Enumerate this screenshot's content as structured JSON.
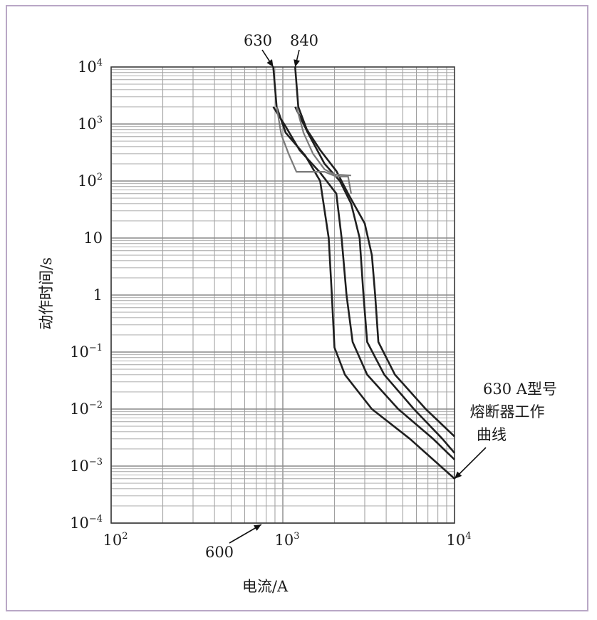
{
  "chart_data": {
    "type": "line",
    "xlabel": "电流/A",
    "ylabel": "动作时间/s",
    "x_scale": "log",
    "y_scale": "log",
    "xlim": [
      100,
      10000
    ],
    "ylim": [
      0.0001,
      10000
    ],
    "grid": true,
    "x_ticks": [
      {
        "value": 100,
        "base": "10",
        "exp": "2"
      },
      {
        "value": 1000,
        "base": "10",
        "exp": "3"
      },
      {
        "value": 10000,
        "base": "10",
        "exp": "4"
      }
    ],
    "y_ticks": [
      {
        "value": 10000,
        "base": "10",
        "exp": "4"
      },
      {
        "value": 1000,
        "base": "10",
        "exp": "3"
      },
      {
        "value": 100,
        "base": "10",
        "exp": "2"
      },
      {
        "value": 10,
        "base": "10",
        "exp": ""
      },
      {
        "value": 1,
        "base": "1",
        "exp": ""
      },
      {
        "value": 0.1,
        "base": "10",
        "exp": "−1"
      },
      {
        "value": 0.01,
        "base": "10",
        "exp": "−2"
      },
      {
        "value": 0.001,
        "base": "10",
        "exp": "−3"
      },
      {
        "value": 0.0001,
        "base": "10",
        "exp": "−4"
      }
    ],
    "series": [
      {
        "color": "#1f1f1f",
        "points": [
          [
            880,
            10000
          ],
          [
            920,
            2000
          ],
          [
            1040,
            700
          ],
          [
            1350,
            280
          ],
          [
            1650,
            100
          ],
          [
            1850,
            10
          ],
          [
            1930,
            1
          ],
          [
            2000,
            0.12
          ],
          [
            2300,
            0.04
          ],
          [
            3300,
            0.01
          ],
          [
            5500,
            0.003
          ],
          [
            10000,
            0.0006
          ]
        ]
      },
      {
        "color": "#1f1f1f",
        "points": [
          [
            880,
            2000
          ],
          [
            1040,
            900
          ],
          [
            1250,
            350
          ],
          [
            1650,
            140
          ],
          [
            2050,
            60
          ],
          [
            2200,
            10
          ],
          [
            2350,
            1
          ],
          [
            2550,
            0.15
          ],
          [
            3100,
            0.04
          ],
          [
            4700,
            0.01
          ],
          [
            7500,
            0.003
          ],
          [
            10000,
            0.0013
          ]
        ]
      },
      {
        "color": "#1f1f1f",
        "points": [
          [
            1180,
            2000
          ],
          [
            1400,
            700
          ],
          [
            1750,
            200
          ],
          [
            2150,
            100
          ],
          [
            2500,
            40
          ],
          [
            2800,
            10
          ],
          [
            2950,
            1
          ],
          [
            3100,
            0.15
          ],
          [
            3900,
            0.04
          ],
          [
            5800,
            0.01
          ],
          [
            8500,
            0.003
          ],
          [
            10000,
            0.0017
          ]
        ]
      },
      {
        "color": "#1f1f1f",
        "points": [
          [
            1180,
            10000
          ],
          [
            1230,
            2000
          ],
          [
            1380,
            800
          ],
          [
            1650,
            350
          ],
          [
            2050,
            150
          ],
          [
            2400,
            60
          ],
          [
            3000,
            18
          ],
          [
            3300,
            5
          ],
          [
            3450,
            1
          ],
          [
            3600,
            0.15
          ],
          [
            4500,
            0.04
          ],
          [
            6800,
            0.01
          ],
          [
            10000,
            0.0033
          ]
        ]
      },
      {
        "color": "#7a7a7a",
        "points": [
          [
            920,
            2000
          ],
          [
            980,
            650
          ],
          [
            1080,
            300
          ],
          [
            1200,
            145
          ],
          [
            1750,
            145
          ],
          [
            2050,
            120
          ],
          [
            2400,
            120
          ],
          [
            2500,
            60
          ]
        ]
      },
      {
        "color": "#7a7a7a",
        "points": [
          [
            1200,
            2000
          ],
          [
            1320,
            700
          ],
          [
            1500,
            300
          ],
          [
            1750,
            160
          ],
          [
            2000,
            130
          ],
          [
            2500,
            125
          ]
        ]
      }
    ],
    "annotations": [
      {
        "text": "630",
        "x": 880,
        "y": 10000
      },
      {
        "text": "840",
        "x": 1180,
        "y": 10000
      },
      {
        "text": "600",
        "x": 750,
        "y": 0.0001
      },
      {
        "text_lines": [
          "630 A型号",
          "熔断器工作",
          "曲线"
        ],
        "x": 10000,
        "y": 0.0006
      }
    ]
  }
}
